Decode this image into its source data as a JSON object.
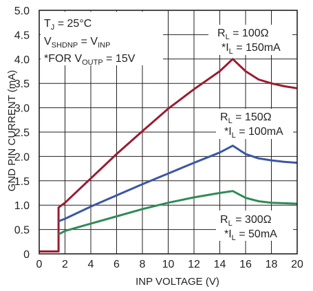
{
  "chart_data": {
    "type": "line",
    "xlabel": "INP VOLTAGE (V)",
    "ylabel": "GND PIN CURRENT (mA)",
    "xlim": [
      0,
      20
    ],
    "ylim": [
      0,
      5.0
    ],
    "x_ticks": [
      0,
      2,
      4,
      6,
      8,
      10,
      12,
      14,
      16,
      18,
      20
    ],
    "x_tick_labels": [
      "0",
      "2",
      "4",
      "6",
      "8",
      "10",
      "12",
      "14",
      "16",
      "18",
      "20"
    ],
    "y_ticks": [
      0,
      0.5,
      1.0,
      1.5,
      2.0,
      2.5,
      3.0,
      3.5,
      4.0,
      4.5,
      5.0
    ],
    "y_tick_labels": [
      "0",
      "0.5",
      "1.0",
      "1.5",
      "2.0",
      "2.5",
      "3.0",
      "3.5",
      "4.0",
      "4.5",
      "5.0"
    ],
    "grid": true,
    "annotations": {
      "conditions": [
        {
          "main": "T",
          "sub": "J",
          "tail": " = 25°C"
        },
        {
          "main": "V",
          "sub": "SHDNP",
          "tail": " = V",
          "sub2": "INP"
        },
        {
          "main": "*FOR V",
          "sub": "OUTP",
          "tail": " = 15V"
        }
      ]
    },
    "series": [
      {
        "color": "#9b1b30",
        "label_line1": {
          "main": "R",
          "sub": "L",
          "tail": " = 100Ω"
        },
        "label_line2": {
          "main": "*I",
          "sub": "L",
          "tail": " = 150mA"
        },
        "points": [
          [
            0,
            0.05
          ],
          [
            1.5,
            0.05
          ],
          [
            1.5,
            0.95
          ],
          [
            2,
            1.05
          ],
          [
            4,
            1.55
          ],
          [
            6,
            2.05
          ],
          [
            8,
            2.52
          ],
          [
            10,
            2.98
          ],
          [
            12,
            3.38
          ],
          [
            14,
            3.75
          ],
          [
            15,
            4.0
          ],
          [
            16,
            3.75
          ],
          [
            17,
            3.58
          ],
          [
            18,
            3.5
          ],
          [
            19,
            3.44
          ],
          [
            20,
            3.4
          ]
        ]
      },
      {
        "color": "#3a56a5",
        "label_line1": {
          "main": "R",
          "sub": "L",
          "tail": " = 150Ω"
        },
        "label_line2": {
          "main": "*I",
          "sub": "L",
          "tail": " = 100mA"
        },
        "points": [
          [
            1.5,
            0.67
          ],
          [
            2,
            0.72
          ],
          [
            4,
            0.97
          ],
          [
            6,
            1.2
          ],
          [
            8,
            1.43
          ],
          [
            10,
            1.65
          ],
          [
            12,
            1.87
          ],
          [
            14,
            2.08
          ],
          [
            15,
            2.22
          ],
          [
            16,
            2.05
          ],
          [
            17,
            1.96
          ],
          [
            18,
            1.92
          ],
          [
            19,
            1.89
          ],
          [
            20,
            1.87
          ]
        ]
      },
      {
        "color": "#2e8b57",
        "label_line1": {
          "main": "R",
          "sub": "L",
          "tail": " = 300Ω"
        },
        "label_line2": {
          "main": "*I",
          "sub": "L",
          "tail": " = 50mA"
        },
        "points": [
          [
            1.5,
            0.4
          ],
          [
            2,
            0.47
          ],
          [
            4,
            0.62
          ],
          [
            6,
            0.77
          ],
          [
            8,
            0.92
          ],
          [
            10,
            1.05
          ],
          [
            12,
            1.16
          ],
          [
            14,
            1.25
          ],
          [
            15,
            1.29
          ],
          [
            16,
            1.15
          ],
          [
            17,
            1.08
          ],
          [
            18,
            1.05
          ],
          [
            19,
            1.04
          ],
          [
            20,
            1.03
          ]
        ]
      }
    ]
  }
}
